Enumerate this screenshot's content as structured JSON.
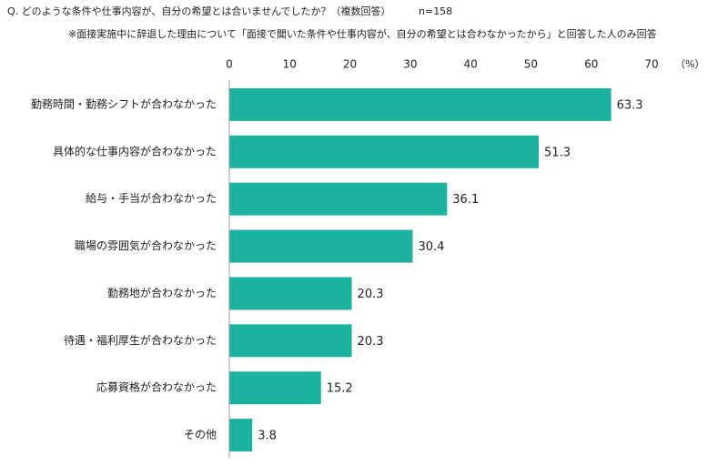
{
  "chart_data": {
    "type": "bar",
    "orientation": "horizontal",
    "title": "Q. どのような条件や仕事内容が、自分の希望とは合いませんでしたか？（複数回答）",
    "sample_size": "n=158",
    "subtitle": "※面接実施中に辞退した理由について「面接で聞いた条件や仕事内容が、自分の希望とは合わなかったから」と回答した人のみ回答",
    "x_axis_label": "（%）",
    "categories": [
      "勤務時間・勤務シフトが合わなかった",
      "具体的な仕事内容が合わなかった",
      "給与・手当が合わなかった",
      "職場の雰囲気が合わなかった",
      "勤務地が合わなかった",
      "待遇・福利厚生が合わなかった",
      "応募資格が合わなかった",
      "その他"
    ],
    "values": [
      63.3,
      51.3,
      36.1,
      30.4,
      20.3,
      20.3,
      15.2,
      3.8
    ],
    "color": "#1bb3a0",
    "xlim": [
      0,
      70
    ],
    "xticks": [
      0,
      10,
      20,
      30,
      40,
      50,
      60,
      70
    ],
    "grid": false
  }
}
